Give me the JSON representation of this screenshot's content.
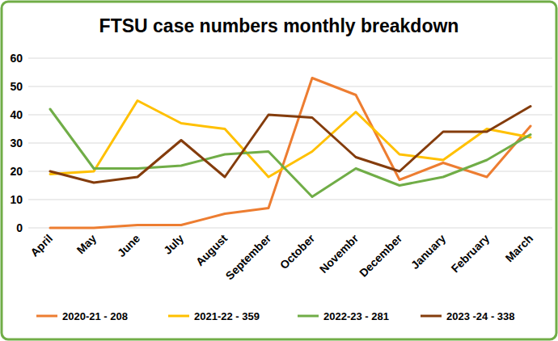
{
  "chart_data": {
    "type": "line",
    "title": "FTSU case numbers monthly breakdown",
    "categories": [
      "April",
      "May",
      "June",
      "July",
      "August",
      "September",
      "October",
      "Novembr",
      "December",
      "January",
      "February",
      "March"
    ],
    "series": [
      {
        "name": "2020-21 - 208",
        "color": "#ed7d31",
        "values": [
          0,
          0,
          1,
          1,
          5,
          7,
          53,
          47,
          17,
          23,
          18,
          36
        ]
      },
      {
        "name": "2021-22 - 359",
        "color": "#ffc000",
        "values": [
          19,
          20,
          45,
          37,
          35,
          18,
          27,
          41,
          26,
          24,
          35,
          32
        ]
      },
      {
        "name": "2022-23 - 281",
        "color": "#70ad47",
        "values": [
          42,
          21,
          21,
          22,
          26,
          27,
          11,
          21,
          15,
          18,
          24,
          33
        ]
      },
      {
        "name": "2023 -24 - 338",
        "color": "#843c0c",
        "values": [
          20,
          16,
          18,
          31,
          18,
          40,
          39,
          25,
          20,
          34,
          34,
          43
        ]
      }
    ],
    "ylim": [
      0,
      60
    ],
    "yticks": [
      0,
      10,
      20,
      30,
      40,
      50,
      60
    ],
    "grid": true,
    "legend": "bottom"
  }
}
